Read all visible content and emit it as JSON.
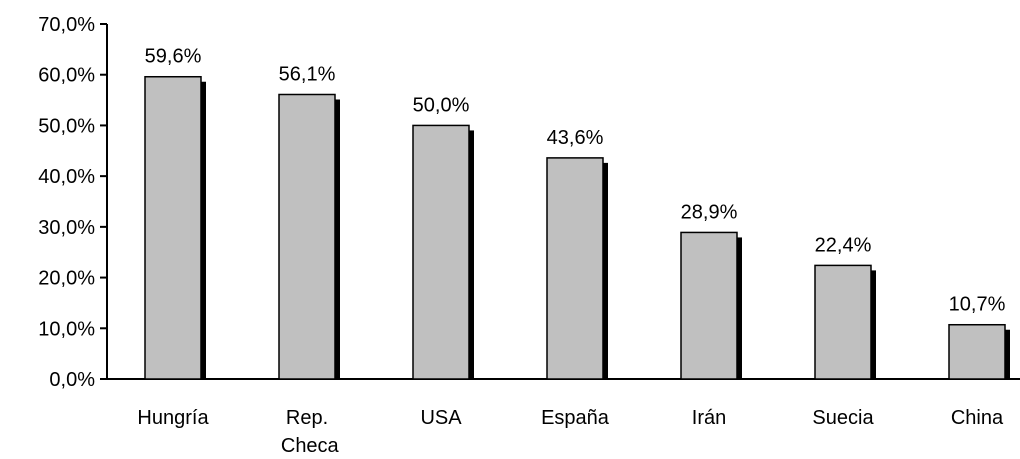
{
  "chart_data": {
    "type": "bar",
    "categories": [
      "Hungría",
      "Rep. Checa",
      "USA",
      "España",
      "Irán",
      "Suecia",
      "China"
    ],
    "values": [
      59.6,
      56.1,
      50.0,
      43.6,
      28.9,
      22.4,
      10.7
    ],
    "value_labels": [
      "59,6%",
      "56,1%",
      "50,0%",
      "43,6%",
      "28,9%",
      "22,4%",
      "10,7%"
    ],
    "color": "#c0c0c0",
    "shadow_color": "#000000",
    "ylim": [
      0,
      70
    ],
    "yticks": [
      {
        "value": 0,
        "label": "0,0%"
      },
      {
        "value": 10,
        "label": "10,0%"
      },
      {
        "value": 20,
        "label": "20,0%"
      },
      {
        "value": 30,
        "label": "30,0%"
      },
      {
        "value": 40,
        "label": "40,0%"
      },
      {
        "value": 50,
        "label": "50,0%"
      },
      {
        "value": 60,
        "label": "60,0%"
      },
      {
        "value": 70,
        "label": "70,0%"
      }
    ],
    "grid": false
  }
}
